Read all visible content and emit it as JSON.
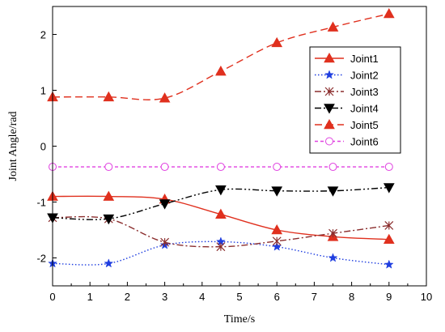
{
  "chart_data": {
    "type": "line",
    "xlabel": "Time/s",
    "ylabel": "Joint Angle/rad",
    "xlim": [
      0,
      10
    ],
    "ylim": [
      -2.5,
      2.5
    ],
    "xticks": [
      "0",
      "1",
      "2",
      "3",
      "4",
      "5",
      "6",
      "7",
      "8",
      "9",
      "10"
    ],
    "yticks": [
      "-2",
      "-1",
      "0",
      "1",
      "2"
    ],
    "grid": false,
    "legend_position": "top-right",
    "x": [
      0,
      1.5,
      3,
      4.5,
      6,
      7.5,
      9
    ],
    "series": [
      {
        "name": "Joint1",
        "values": [
          -0.9,
          -0.9,
          -0.95,
          -1.22,
          -1.5,
          -1.62,
          -1.67
        ],
        "color": "#e0301e",
        "line": "solid",
        "marker": "triangle-up-filled"
      },
      {
        "name": "Joint2",
        "values": [
          -2.1,
          -2.1,
          -1.77,
          -1.71,
          -1.8,
          -2.0,
          -2.12
        ],
        "color": "#1f3ee0",
        "line": "dotted",
        "marker": "star"
      },
      {
        "name": "Joint3",
        "values": [
          -1.28,
          -1.3,
          -1.72,
          -1.8,
          -1.7,
          -1.56,
          -1.42
        ],
        "color": "#8b2e2e",
        "line": "dashdot",
        "marker": "x-star"
      },
      {
        "name": "Joint4",
        "values": [
          -1.28,
          -1.3,
          -1.03,
          -0.78,
          -0.8,
          -0.8,
          -0.74
        ],
        "color": "#000000",
        "line": "dashdotdot",
        "marker": "triangle-down-filled"
      },
      {
        "name": "Joint5",
        "values": [
          0.88,
          0.88,
          0.86,
          1.34,
          1.85,
          2.13,
          2.37
        ],
        "color": "#e0301e",
        "line": "dashed",
        "marker": "triangle-up-filled"
      },
      {
        "name": "Joint6",
        "values": [
          -0.37,
          -0.37,
          -0.37,
          -0.37,
          -0.37,
          -0.37,
          -0.37
        ],
        "color": "#e040e0",
        "line": "dashed-short",
        "marker": "circle-open"
      }
    ]
  }
}
